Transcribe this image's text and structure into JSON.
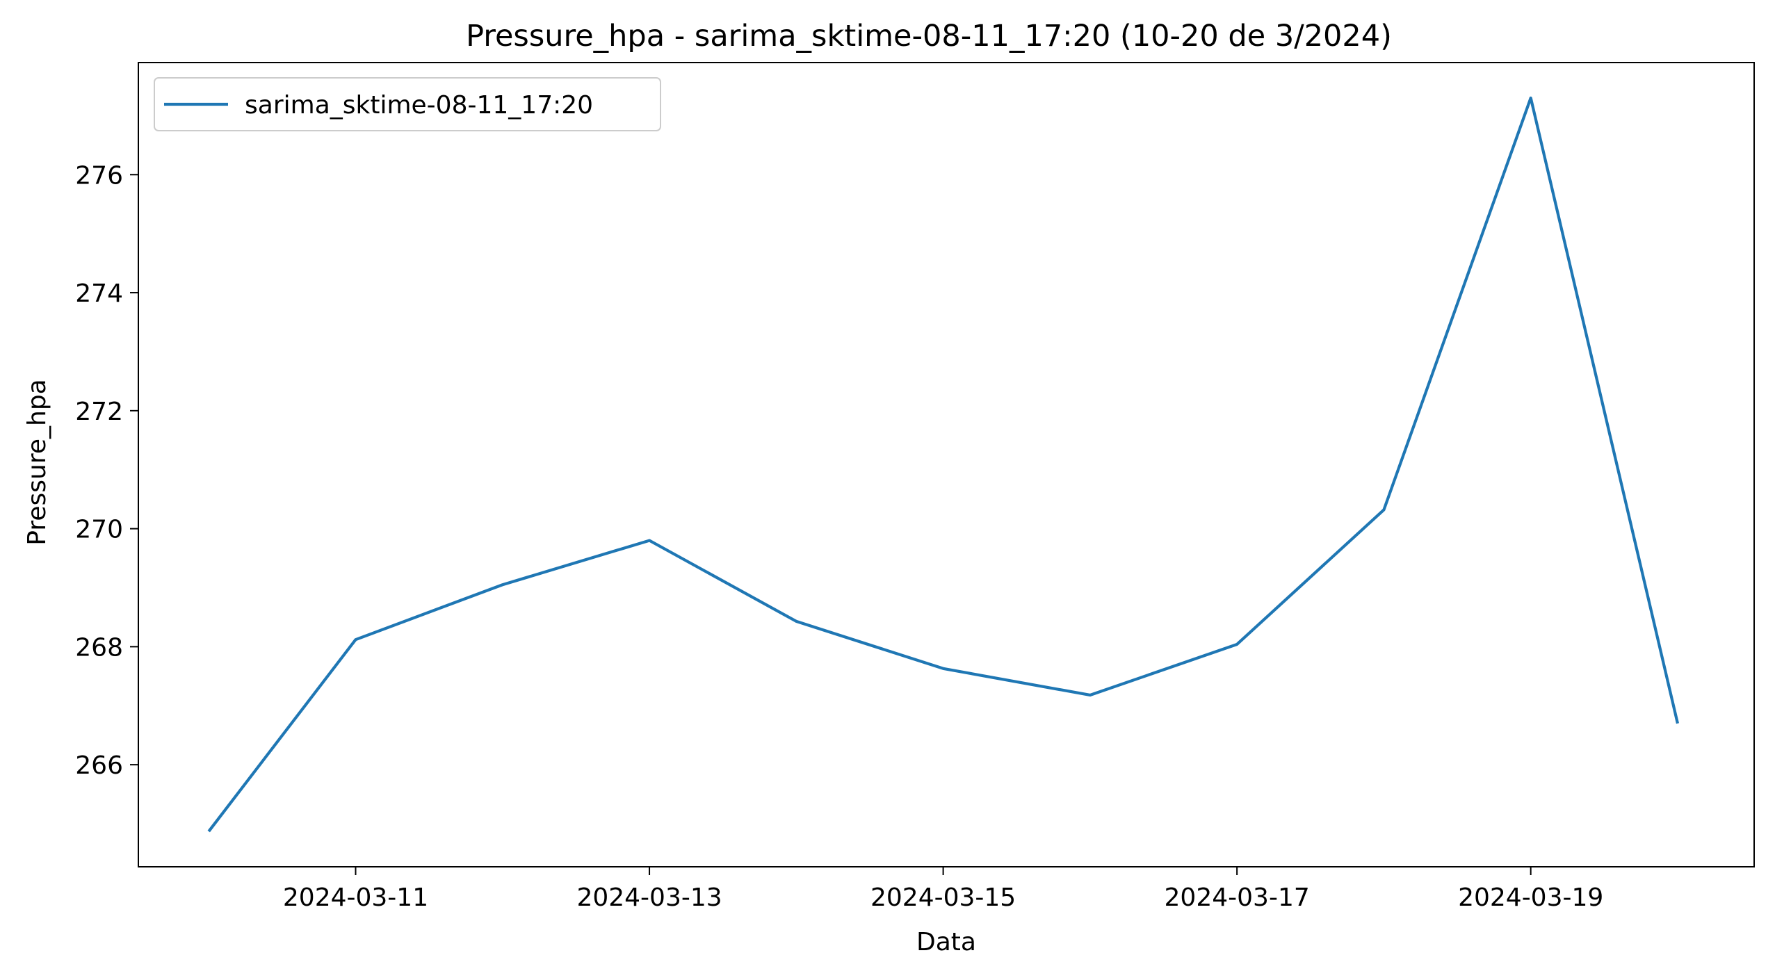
{
  "chart_data": {
    "type": "line",
    "title": "Pressure_hpa - sarima_sktime-08-11_17:20 (10-20 de 3/2024)",
    "xlabel": "Data",
    "ylabel": "Pressure_hpa",
    "x": [
      "2024-03-10",
      "2024-03-11",
      "2024-03-12",
      "2024-03-13",
      "2024-03-14",
      "2024-03-15",
      "2024-03-16",
      "2024-03-17",
      "2024-03-18",
      "2024-03-19",
      "2024-03-20"
    ],
    "series": [
      {
        "name": "sarima_sktime-08-11_17:20",
        "color": "#1f77b4",
        "values": [
          264.87,
          268.12,
          269.05,
          269.8,
          268.43,
          267.63,
          267.18,
          268.04,
          270.32,
          277.3,
          266.7
        ]
      }
    ],
    "x_ticks": [
      "2024-03-11",
      "2024-03-13",
      "2024-03-15",
      "2024-03-17",
      "2024-03-19"
    ],
    "y_ticks": [
      266,
      268,
      270,
      272,
      274,
      276
    ],
    "xlim": [
      "2024-03-09T12:30",
      "2024-03-20T12:30"
    ],
    "ylim": [
      264.27,
      277.9
    ],
    "grid": false,
    "legend_position": "upper left"
  }
}
